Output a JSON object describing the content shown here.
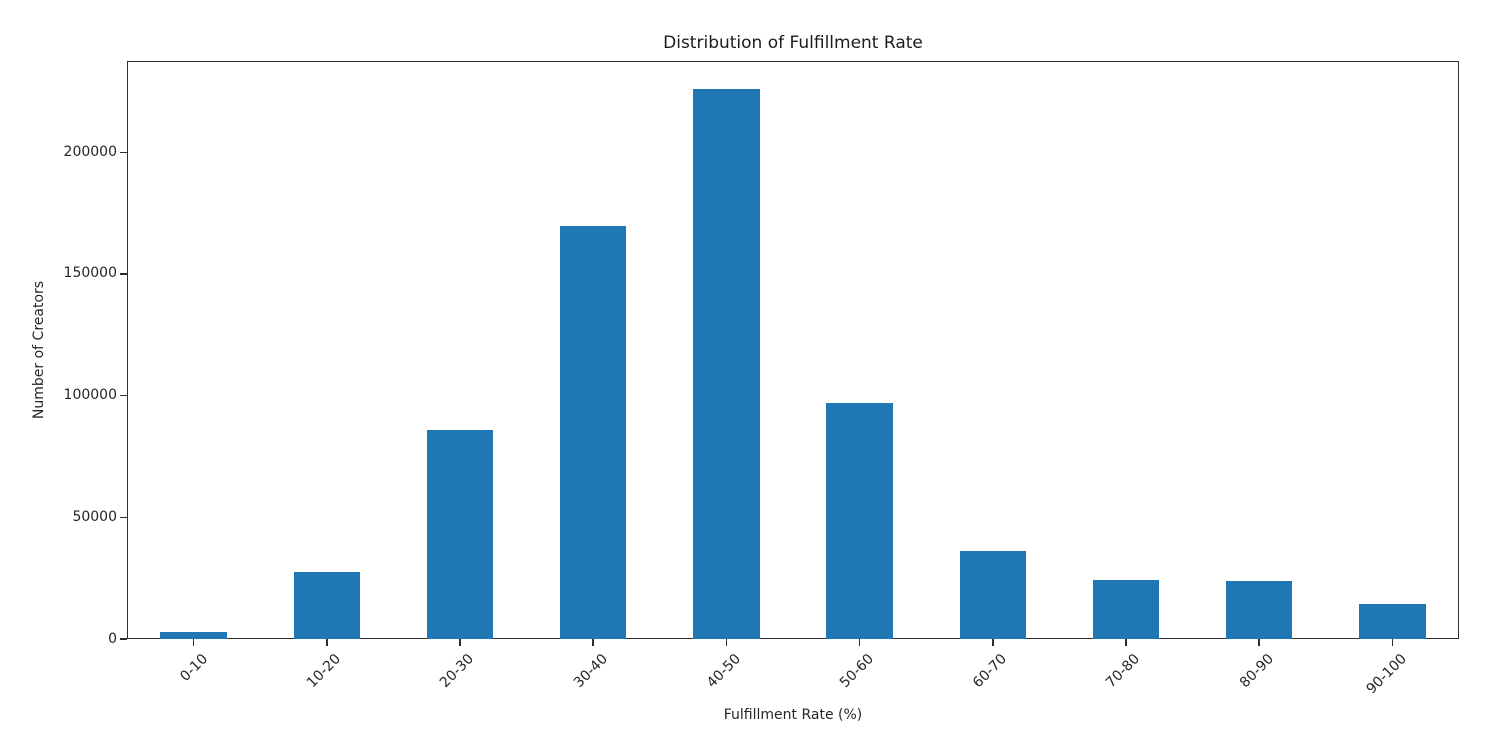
{
  "chart_data": {
    "type": "bar",
    "title": "Distribution of Fulfillment Rate",
    "xlabel": "Fulfillment Rate (%)",
    "ylabel": "Number of Creators",
    "categories": [
      "0-10",
      "10-20",
      "20-30",
      "30-40",
      "40-50",
      "50-60",
      "60-70",
      "70-80",
      "80-90",
      "90-100"
    ],
    "values": [
      3000,
      27500,
      86000,
      169500,
      225800,
      97000,
      36000,
      24200,
      23800,
      14500
    ],
    "yticks": [
      0,
      50000,
      100000,
      150000,
      200000
    ],
    "ylim": [
      0,
      237500
    ],
    "bar_color": "#1f77b4",
    "spine_color": "#2e2e2e",
    "text_color": "#262626",
    "grid": false,
    "legend": null,
    "xtick_rotation": 45,
    "bar_width_fraction": 0.5
  }
}
